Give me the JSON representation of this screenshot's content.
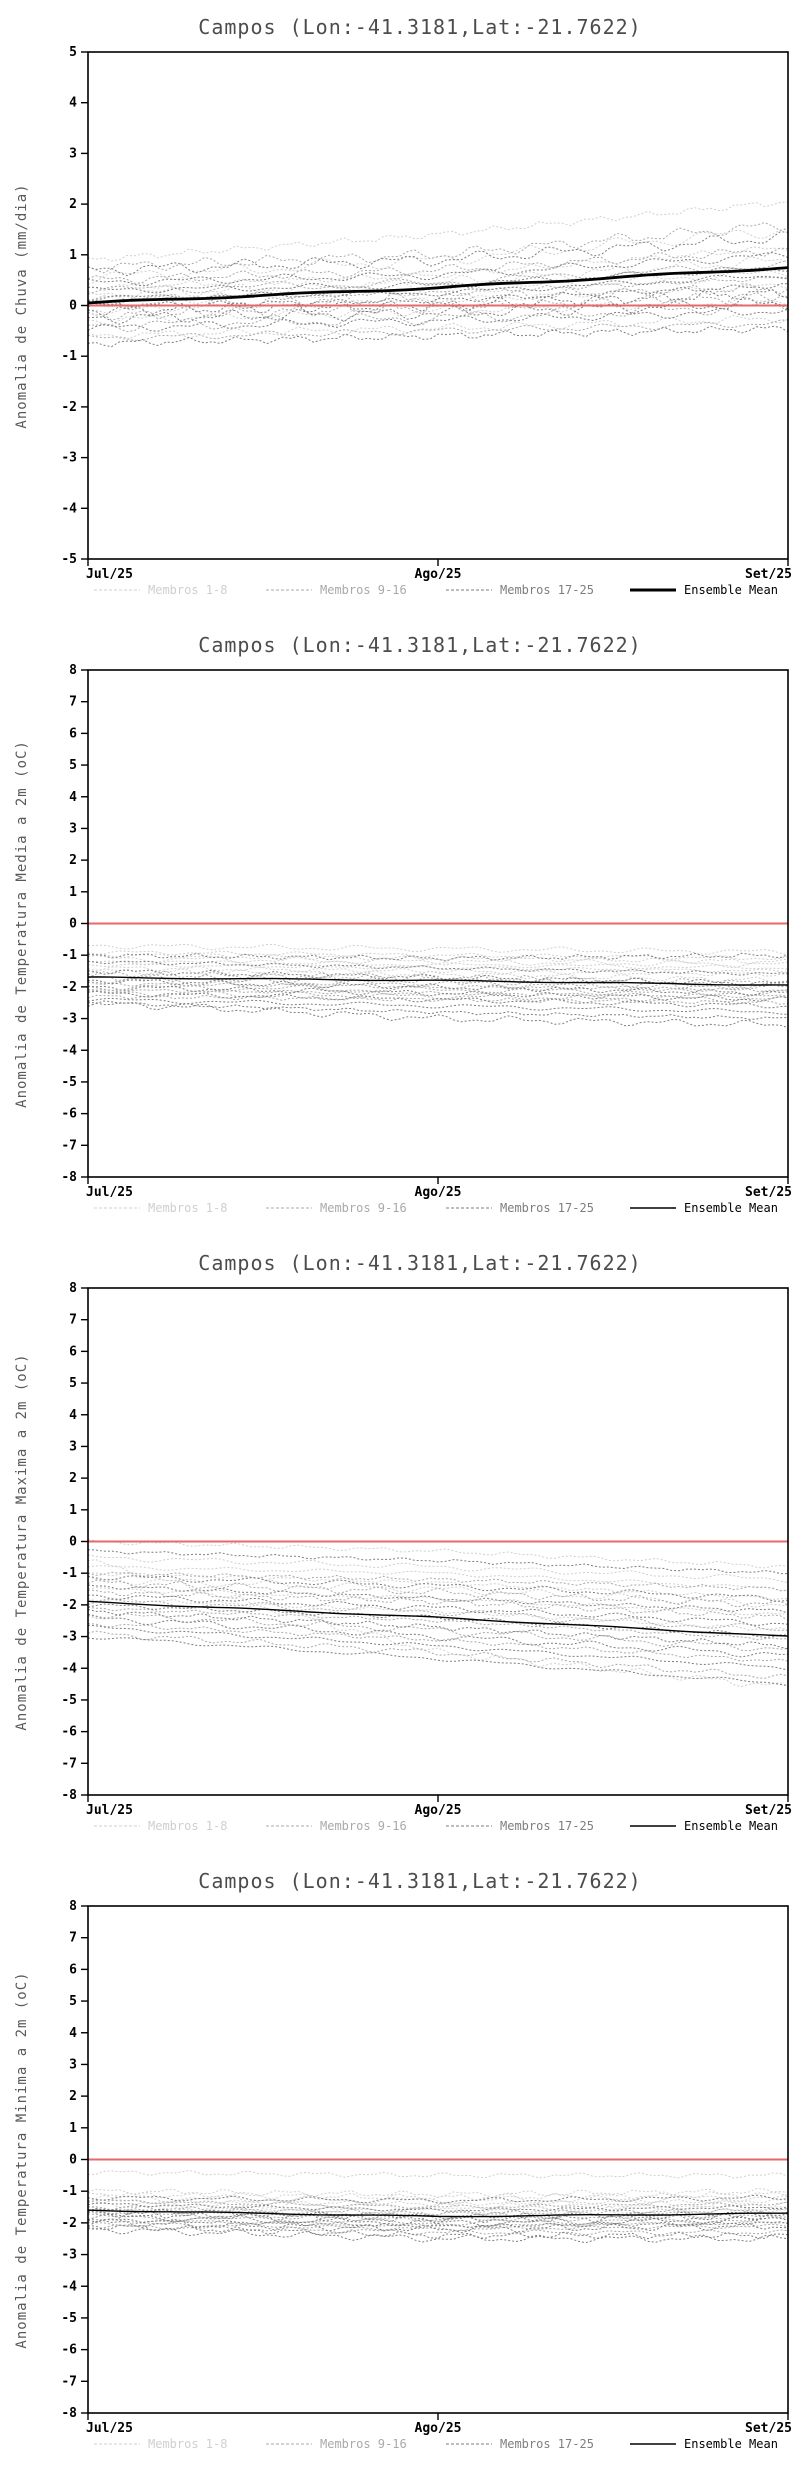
{
  "page": {
    "background": "#ffffff"
  },
  "chart_data": [
    {
      "type": "line",
      "title": "Campos (Lon:-41.3181,Lat:-21.7622)",
      "ylabel": "Anomalia de Chuva (mm/dia)",
      "x_ticks": [
        "Jul/25",
        "Ago/25",
        "Set/25"
      ],
      "ylim": [
        -5,
        5
      ],
      "ytick_step": 1,
      "grid": false,
      "legend_position": "bottom",
      "zero_line": {
        "value": 0,
        "color": "#e46a6a"
      },
      "mean_bold": true,
      "groups": [
        {
          "label": "Membros 1-8",
          "color": "#cfcfcf",
          "members": [
            [
              0.9,
              1.4,
              2.05
            ],
            [
              0.55,
              0.9,
              1.5
            ],
            [
              0.35,
              0.6,
              1.15
            ],
            [
              0.2,
              0.45,
              0.9
            ],
            [
              0.05,
              0.3,
              0.65
            ],
            [
              -0.1,
              0.1,
              0.4
            ],
            [
              -0.3,
              -0.1,
              0.1
            ],
            [
              -0.6,
              -0.45,
              -0.25
            ]
          ]
        },
        {
          "label": "Membros 9-16",
          "color": "#a9a9a9",
          "members": [
            [
              0.75,
              1.0,
              1.6
            ],
            [
              0.5,
              0.7,
              1.1
            ],
            [
              0.3,
              0.45,
              0.8
            ],
            [
              0.15,
              0.25,
              0.55
            ],
            [
              0.0,
              0.15,
              0.35
            ],
            [
              -0.2,
              -0.05,
              0.2
            ],
            [
              -0.4,
              -0.25,
              0.0
            ],
            [
              -0.65,
              -0.5,
              -0.35
            ]
          ]
        },
        {
          "label": "Membros 17-25",
          "color": "#7e7e7e",
          "members": [
            [
              0.7,
              0.9,
              1.35
            ],
            [
              0.45,
              0.6,
              1.0
            ],
            [
              0.3,
              0.4,
              0.75
            ],
            [
              0.15,
              0.25,
              0.6
            ],
            [
              0.0,
              0.1,
              0.4
            ],
            [
              -0.1,
              0.0,
              0.25
            ],
            [
              -0.25,
              -0.15,
              0.05
            ],
            [
              -0.45,
              -0.3,
              -0.1
            ],
            [
              -0.75,
              -0.6,
              -0.45
            ]
          ]
        }
      ],
      "ensemble_mean": {
        "label": "Ensemble Mean",
        "color": "#000000",
        "values": [
          0.05,
          0.35,
          0.75
        ]
      }
    },
    {
      "type": "line",
      "title": "Campos (Lon:-41.3181,Lat:-21.7622)",
      "ylabel": "Anomalia de Temperatura Media a 2m (oC)",
      "x_ticks": [
        "Jul/25",
        "Ago/25",
        "Set/25"
      ],
      "ylim": [
        -8,
        8
      ],
      "ytick_step": 1,
      "grid": false,
      "legend_position": "bottom",
      "zero_line": {
        "value": 0,
        "color": "#e46a6a"
      },
      "mean_bold": false,
      "groups": [
        {
          "label": "Membros 1-8",
          "color": "#cfcfcf",
          "members": [
            [
              -0.7,
              -0.8,
              -0.9
            ],
            [
              -0.9,
              -1.0,
              -1.1
            ],
            [
              -1.0,
              -1.1,
              -1.2
            ],
            [
              -1.1,
              -1.2,
              -1.3
            ],
            [
              -1.2,
              -1.3,
              -1.4
            ],
            [
              -1.3,
              -1.4,
              -1.5
            ],
            [
              -1.4,
              -1.5,
              -1.6
            ],
            [
              -1.5,
              -1.6,
              -1.8
            ]
          ]
        },
        {
          "label": "Membros 9-16",
          "color": "#a9a9a9",
          "members": [
            [
              -1.6,
              -1.7,
              -1.9
            ],
            [
              -1.7,
              -1.8,
              -2.0
            ],
            [
              -1.8,
              -1.9,
              -2.0
            ],
            [
              -1.9,
              -2.0,
              -2.1
            ],
            [
              -2.0,
              -2.1,
              -2.2
            ],
            [
              -2.1,
              -2.2,
              -2.3
            ],
            [
              -2.2,
              -2.3,
              -2.4
            ],
            [
              -2.3,
              -2.4,
              -2.5
            ]
          ]
        },
        {
          "label": "Membros 17-25",
          "color": "#7e7e7e",
          "members": [
            [
              -1.2,
              -1.4,
              -1.6
            ],
            [
              -1.5,
              -1.7,
              -1.9
            ],
            [
              -1.8,
              -2.0,
              -2.2
            ],
            [
              -2.0,
              -2.2,
              -2.4
            ],
            [
              -2.2,
              -2.4,
              -2.6
            ],
            [
              -2.4,
              -2.6,
              -2.8
            ],
            [
              -2.5,
              -2.8,
              -3.0
            ],
            [
              -2.5,
              -3.0,
              -3.2
            ],
            [
              -1.0,
              -1.1,
              -1.0
            ]
          ]
        }
      ],
      "ensemble_mean": {
        "label": "Ensemble Mean",
        "color": "#000000",
        "values": [
          -1.7,
          -1.8,
          -1.95
        ]
      }
    },
    {
      "type": "line",
      "title": "Campos (Lon:-41.3181,Lat:-21.7622)",
      "ylabel": "Anomalia de Temperatura Maxima a 2m (oC)",
      "x_ticks": [
        "Jul/25",
        "Ago/25",
        "Set/25"
      ],
      "ylim": [
        -8,
        8
      ],
      "ytick_step": 1,
      "grid": false,
      "legend_position": "bottom",
      "zero_line": {
        "value": 0,
        "color": "#e46a6a"
      },
      "mean_bold": false,
      "groups": [
        {
          "label": "Membros 1-8",
          "color": "#cfcfcf",
          "members": [
            [
              0.0,
              -0.3,
              -0.8
            ],
            [
              -0.5,
              -0.8,
              -1.2
            ],
            [
              -0.8,
              -1.0,
              -1.5
            ],
            [
              -1.0,
              -1.3,
              -1.8
            ],
            [
              -1.2,
              -1.5,
              -2.0
            ],
            [
              -1.5,
              -1.8,
              -2.3
            ],
            [
              -1.8,
              -2.2,
              -2.8
            ],
            [
              -0.6,
              -3.5,
              -4.6
            ]
          ]
        },
        {
          "label": "Membros 9-16",
          "color": "#a9a9a9",
          "members": [
            [
              -1.0,
              -1.2,
              -1.5
            ],
            [
              -1.3,
              -1.6,
              -2.0
            ],
            [
              -1.6,
              -1.9,
              -2.4
            ],
            [
              -1.9,
              -2.2,
              -2.8
            ],
            [
              -2.1,
              -2.5,
              -3.1
            ],
            [
              -2.3,
              -2.8,
              -3.4
            ],
            [
              -2.6,
              -3.1,
              -3.8
            ],
            [
              -2.9,
              -3.5,
              -4.3
            ]
          ]
        },
        {
          "label": "Membros 17-25",
          "color": "#7e7e7e",
          "members": [
            [
              -1.1,
              -1.4,
              -1.8
            ],
            [
              -1.4,
              -1.8,
              -2.2
            ],
            [
              -1.7,
              -2.1,
              -2.6
            ],
            [
              -2.0,
              -2.4,
              -3.0
            ],
            [
              -2.2,
              -2.7,
              -3.3
            ],
            [
              -2.4,
              -3.0,
              -3.6
            ],
            [
              -2.7,
              -3.3,
              -4.0
            ],
            [
              -3.0,
              -3.7,
              -4.5
            ],
            [
              -0.3,
              -0.6,
              -1.0
            ]
          ]
        }
      ],
      "ensemble_mean": {
        "label": "Ensemble Mean",
        "color": "#000000",
        "values": [
          -1.9,
          -2.4,
          -3.0
        ]
      }
    },
    {
      "type": "line",
      "title": "Campos (Lon:-41.3181,Lat:-21.7622)",
      "ylabel": "Anomalia de Temperatura Minima a 2m (oC)",
      "x_ticks": [
        "Jul/25",
        "Ago/25",
        "Set/25"
      ],
      "ylim": [
        -8,
        8
      ],
      "ytick_step": 1,
      "grid": false,
      "legend_position": "bottom",
      "zero_line": {
        "value": 0,
        "color": "#e46a6a"
      },
      "mean_bold": false,
      "groups": [
        {
          "label": "Membros 1-8",
          "color": "#cfcfcf",
          "members": [
            [
              -0.4,
              -0.5,
              -0.5
            ],
            [
              -1.0,
              -1.1,
              -1.0
            ],
            [
              -1.1,
              -1.2,
              -1.1
            ],
            [
              -1.2,
              -1.3,
              -1.2
            ],
            [
              -1.3,
              -1.4,
              -1.3
            ],
            [
              -1.4,
              -1.5,
              -1.4
            ],
            [
              -1.5,
              -1.6,
              -1.5
            ],
            [
              -1.6,
              -1.7,
              -1.6
            ]
          ]
        },
        {
          "label": "Membros 9-16",
          "color": "#a9a9a9",
          "members": [
            [
              -1.3,
              -1.5,
              -1.4
            ],
            [
              -1.5,
              -1.7,
              -1.6
            ],
            [
              -1.6,
              -1.8,
              -1.7
            ],
            [
              -1.7,
              -1.9,
              -1.8
            ],
            [
              -1.8,
              -2.0,
              -1.9
            ],
            [
              -1.9,
              -2.1,
              -2.0
            ],
            [
              -2.0,
              -2.2,
              -2.1
            ],
            [
              -2.1,
              -2.3,
              -2.3
            ]
          ]
        },
        {
          "label": "Membros 17-25",
          "color": "#7e7e7e",
          "members": [
            [
              -1.4,
              -1.6,
              -1.5
            ],
            [
              -1.6,
              -1.8,
              -1.7
            ],
            [
              -1.7,
              -1.9,
              -1.8
            ],
            [
              -1.8,
              -2.0,
              -1.9
            ],
            [
              -1.9,
              -2.1,
              -2.0
            ],
            [
              -2.0,
              -2.2,
              -2.1
            ],
            [
              -2.1,
              -2.4,
              -2.4
            ],
            [
              -2.2,
              -2.5,
              -2.5
            ],
            [
              -1.2,
              -1.3,
              -1.2
            ]
          ]
        }
      ],
      "ensemble_mean": {
        "label": "Ensemble Mean",
        "color": "#000000",
        "values": [
          -1.6,
          -1.8,
          -1.7
        ]
      }
    }
  ]
}
